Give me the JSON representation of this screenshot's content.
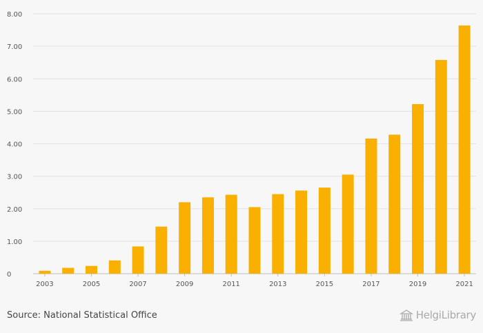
{
  "chart_data": {
    "type": "bar",
    "title": "",
    "xlabel": "",
    "ylabel": "",
    "categories": [
      "2003",
      "2004",
      "2005",
      "2006",
      "2007",
      "2008",
      "2009",
      "2010",
      "2011",
      "2012",
      "2013",
      "2014",
      "2015",
      "2016",
      "2017",
      "2018",
      "2019",
      "2020",
      "2021"
    ],
    "x_tick_labels": [
      "2003",
      "2005",
      "2007",
      "2009",
      "2011",
      "2013",
      "2015",
      "2017",
      "2019",
      "2021"
    ],
    "values": [
      0.09,
      0.18,
      0.24,
      0.41,
      0.84,
      1.45,
      2.2,
      2.35,
      2.43,
      2.05,
      2.45,
      2.56,
      2.65,
      3.05,
      4.16,
      4.28,
      5.22,
      6.58,
      7.64
    ],
    "y_ticks": [
      "0",
      "1.00",
      "2.00",
      "3.00",
      "4.00",
      "5.00",
      "6.00",
      "7.00",
      "8.00"
    ],
    "ylim": [
      0,
      8
    ],
    "grid": true,
    "bar_color": "#f9b000",
    "grid_color": "#e2e2e2"
  },
  "footer": {
    "source": "Source: National Statistical Office",
    "brand": "HelgiLibrary"
  }
}
